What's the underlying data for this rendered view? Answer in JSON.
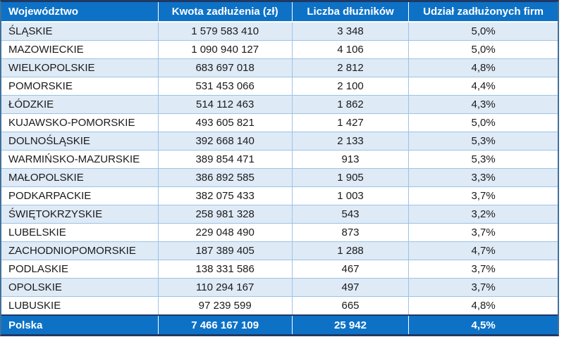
{
  "chart_data": {
    "type": "table",
    "columns": [
      "Województwo",
      "Kwota zadłużenia (zł)",
      "Liczba dłużników",
      "Udział zadłużonych firm"
    ],
    "rows": [
      [
        "ŚLĄSKIE",
        "1 579 583 410",
        "3 348",
        "5,0%"
      ],
      [
        "MAZOWIECKIE",
        "1 090 940 127",
        "4 106",
        "5,0%"
      ],
      [
        "WIELKOPOLSKIE",
        "683 697 018",
        "2 812",
        "4,8%"
      ],
      [
        "POMORSKIE",
        "531 453 066",
        "2 100",
        "4,4%"
      ],
      [
        "ŁÓDZKIE",
        "514 112 463",
        "1 862",
        "4,3%"
      ],
      [
        "KUJAWSKO-POMORSKIE",
        "493 605 821",
        "1 427",
        "5,0%"
      ],
      [
        "DOLNOŚLĄSKIE",
        "392 668 140",
        "2 133",
        "5,3%"
      ],
      [
        "WARMIŃSKO-MAZURSKIE",
        "389 854 471",
        "913",
        "5,3%"
      ],
      [
        "MAŁOPOLSKIE",
        "386 892 585",
        "1 905",
        "3,3%"
      ],
      [
        "PODKARPACKIE",
        "382 075 433",
        "1 003",
        "3,7%"
      ],
      [
        "ŚWIĘTOKRZYSKIE",
        "258 981 328",
        "543",
        "3,2%"
      ],
      [
        "LUBELSKIE",
        "229 048 490",
        "873",
        "3,7%"
      ],
      [
        "ZACHODNIOPOMORSKIE",
        "187 389 405",
        "1 288",
        "4,7%"
      ],
      [
        "PODLASKIE",
        "138 331 586",
        "467",
        "3,7%"
      ],
      [
        "OPOLSKIE",
        "110 294 167",
        "497",
        "3,7%"
      ],
      [
        "LUBUSKIE",
        "97 239 599",
        "665",
        "4,8%"
      ]
    ],
    "footer": [
      "Polska",
      "7 466 167 109",
      "25 942",
      "4,5%"
    ],
    "layout_hints": {
      "row_striping": "odd rows light blue starting with first data row",
      "alignment": [
        "left",
        "center",
        "center",
        "center"
      ]
    }
  },
  "colors": {
    "header_bg": "#0D72C6",
    "footer_bg": "#0D72C6",
    "alt_row_bg": "#DEEAF6",
    "row_bg": "#FFFFFF",
    "outer_border_dark": "#1F3864",
    "side_border": "#41719C",
    "grid_line": "#9DC3E6",
    "header_text": "#FFFFFF",
    "body_text": "#1A1A1A"
  }
}
